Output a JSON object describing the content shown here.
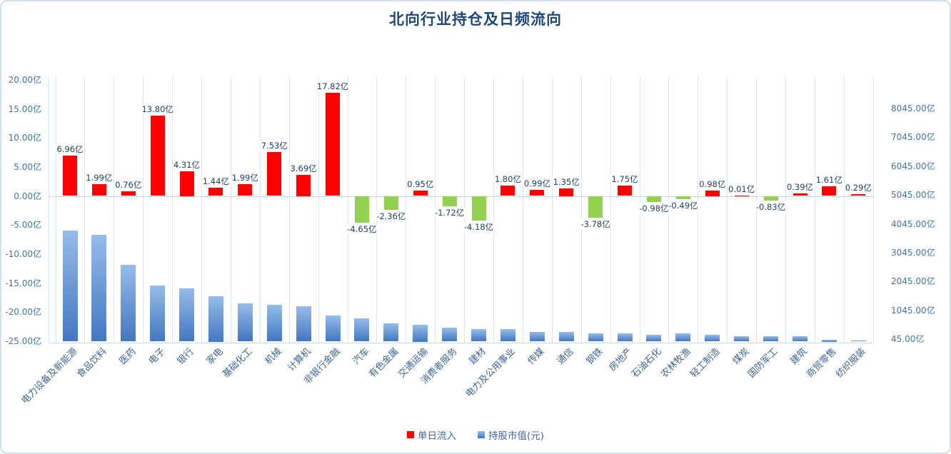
{
  "title": "北向行业持仓及日频流向",
  "legend": [
    {
      "label": "单日流入",
      "color": "#fe0000"
    },
    {
      "label": "持股市值(元)",
      "color": "#6f9fd8"
    }
  ],
  "colors": {
    "title": "#1e4878",
    "inflow_positive": "#fe0000",
    "inflow_negative": "#92d050",
    "holdings_bar_top": "#96bce9",
    "holdings_bar_bottom": "#4377c2",
    "gridline": "#d9e7f3",
    "axis_text": "#4273ae",
    "data_label_text": "#1d3f66",
    "category_text": "#3c6496"
  },
  "chart_data": {
    "type": "bar",
    "title": "北向行业持仓及日频流向",
    "categories": [
      "电力设备及新能源",
      "食品饮料",
      "医药",
      "电子",
      "银行",
      "家电",
      "基础化工",
      "机械",
      "计算机",
      "非银行金融",
      "汽车",
      "有色金属",
      "交通运输",
      "消费者服务",
      "建材",
      "电力及公用事业",
      "传媒",
      "通信",
      "钢铁",
      "房地产",
      "石油石化",
      "农林牧渔",
      "轻工制造",
      "煤炭",
      "国防军工",
      "建筑",
      "商贸零售",
      "纺织服装"
    ],
    "series": [
      {
        "name": "单日流入",
        "axis": "left",
        "unit": "亿",
        "values": [
          6.96,
          1.99,
          0.76,
          13.8,
          4.31,
          1.44,
          1.99,
          7.53,
          3.69,
          17.82,
          -4.65,
          -2.36,
          0.95,
          -1.72,
          -4.18,
          1.8,
          0.99,
          1.35,
          -3.78,
          1.75,
          -0.98,
          -0.49,
          0.98,
          0.01,
          -0.83,
          0.39,
          1.61,
          0.29
        ],
        "data_labels": [
          "6.96亿",
          "1.99亿",
          "0.76亿",
          "13.80亿",
          "4.31亿",
          "1.44亿",
          "1.99亿",
          "7.53亿",
          "3.69亿",
          "17.82亿",
          "-4.65亿",
          "-2.36亿",
          "0.95亿",
          "-1.72亿",
          "-4.18亿",
          "1.80亿",
          "0.99亿",
          "1.35亿",
          "-3.78亿",
          "1.75亿",
          "-0.98亿",
          "-0.49亿",
          "0.98亿",
          "0.01亿",
          "-0.83亿",
          "0.39亿",
          "1.61亿",
          "0.29亿"
        ]
      },
      {
        "name": "持股市值(元)",
        "axis": "right",
        "unit": "亿",
        "estimated": true,
        "values": [
          3900,
          3750,
          2700,
          2000,
          1880,
          1630,
          1360,
          1310,
          1260,
          960,
          840,
          670,
          640,
          520,
          470,
          470,
          390,
          390,
          320,
          340,
          290,
          340,
          270,
          240,
          220,
          220,
          120,
          90
        ]
      }
    ],
    "left_axis": {
      "min": -25,
      "max": 20,
      "step": 5,
      "ticks": [
        "20.00亿",
        "15.00亿",
        "10.00亿",
        "5.00亿",
        "0.00亿",
        "-5.00亿",
        "-10.00亿",
        "-15.00亿",
        "-20.00亿",
        "-25.00亿"
      ]
    },
    "right_axis": {
      "min": 45,
      "max": 8045,
      "step": 1000,
      "ticks": [
        "8045.00亿",
        "7045.00亿",
        "6045.00亿",
        "5045.00亿",
        "4045.00亿",
        "3045.00亿",
        "2045.00亿",
        "1045.00亿",
        "45.00亿"
      ]
    },
    "grid": "vertical-only",
    "legend_position": "bottom-center"
  }
}
